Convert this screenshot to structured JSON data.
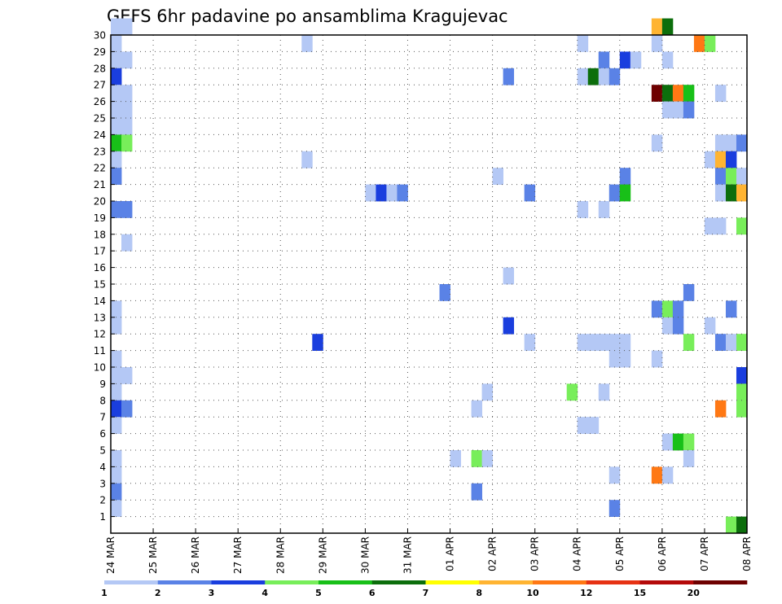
{
  "chart_data": {
    "type": "heatmap",
    "title": "GEFS 6hr padavine po ansamblima Kragujevac",
    "xlabel": "",
    "ylabel": "",
    "x_tick_labels": [
      "24 MAR",
      "25 MAR",
      "26 MAR",
      "27 MAR",
      "28 MAR",
      "29 MAR",
      "30 MAR",
      "31 MAR",
      "01 APR",
      "02 APR",
      "03 APR",
      "04 APR",
      "05 APR",
      "06 APR",
      "07 APR",
      "08 APR"
    ],
    "y_tick_labels": [
      "1",
      "2",
      "3",
      "4",
      "5",
      "6",
      "7",
      "8",
      "9",
      "10",
      "11",
      "12",
      "13",
      "14",
      "15",
      "16",
      "17",
      "18",
      "19",
      "20",
      "21",
      "22",
      "23",
      "24",
      "25",
      "26",
      "27",
      "28",
      "29",
      "30"
    ],
    "x_range_steps": [
      0,
      60
    ],
    "steps_per_day": 4,
    "y_range": [
      0,
      30
    ],
    "grid": true,
    "colorbar": {
      "labels": [
        "1",
        "2",
        "3",
        "4",
        "5",
        "6",
        "7",
        "8",
        "10",
        "12",
        "15",
        "20"
      ],
      "colors": [
        "#b4c8f5",
        "#5a82e6",
        "#1a3ede",
        "#78ee5a",
        "#18c018",
        "#0c6e0c",
        "#ffff00",
        "#ffb432",
        "#ff7814",
        "#e63214",
        "#b40a0a",
        "#6e0000"
      ]
    },
    "cells": [
      {
        "t": 0,
        "m": 30,
        "c": 1
      },
      {
        "t": 1,
        "m": 30,
        "c": 1
      },
      {
        "t": 51,
        "m": 30,
        "c": 8
      },
      {
        "t": 52,
        "m": 30,
        "c": 6
      },
      {
        "t": 0,
        "m": 29,
        "c": 1
      },
      {
        "t": 18,
        "m": 29,
        "c": 1
      },
      {
        "t": 44,
        "m": 29,
        "c": 1
      },
      {
        "t": 51,
        "m": 29,
        "c": 1
      },
      {
        "t": 55,
        "m": 29,
        "c": 9
      },
      {
        "t": 56,
        "m": 29,
        "c": 4
      },
      {
        "t": 0,
        "m": 28,
        "c": 1
      },
      {
        "t": 1,
        "m": 28,
        "c": 1
      },
      {
        "t": 46,
        "m": 28,
        "c": 2
      },
      {
        "t": 48,
        "m": 28,
        "c": 3
      },
      {
        "t": 49,
        "m": 28,
        "c": 1
      },
      {
        "t": 52,
        "m": 28,
        "c": 1
      },
      {
        "t": 0,
        "m": 27,
        "c": 3
      },
      {
        "t": 37,
        "m": 27,
        "c": 2
      },
      {
        "t": 44,
        "m": 27,
        "c": 1
      },
      {
        "t": 45,
        "m": 27,
        "c": 6
      },
      {
        "t": 46,
        "m": 27,
        "c": 1
      },
      {
        "t": 47,
        "m": 27,
        "c": 2
      },
      {
        "t": 0,
        "m": 26,
        "c": 1
      },
      {
        "t": 1,
        "m": 26,
        "c": 1
      },
      {
        "t": 51,
        "m": 26,
        "c": 12
      },
      {
        "t": 52,
        "m": 26,
        "c": 6
      },
      {
        "t": 53,
        "m": 26,
        "c": 9
      },
      {
        "t": 54,
        "m": 26,
        "c": 5
      },
      {
        "t": 57,
        "m": 26,
        "c": 1
      },
      {
        "t": 0,
        "m": 25,
        "c": 1
      },
      {
        "t": 1,
        "m": 25,
        "c": 1
      },
      {
        "t": 52,
        "m": 25,
        "c": 1
      },
      {
        "t": 53,
        "m": 25,
        "c": 1
      },
      {
        "t": 54,
        "m": 25,
        "c": 2
      },
      {
        "t": 0,
        "m": 24,
        "c": 1
      },
      {
        "t": 1,
        "m": 24,
        "c": 1
      },
      {
        "t": 0,
        "m": 23,
        "c": 5
      },
      {
        "t": 1,
        "m": 23,
        "c": 4
      },
      {
        "t": 51,
        "m": 23,
        "c": 1
      },
      {
        "t": 57,
        "m": 23,
        "c": 1
      },
      {
        "t": 58,
        "m": 23,
        "c": 1
      },
      {
        "t": 59,
        "m": 23,
        "c": 2
      },
      {
        "t": 0,
        "m": 22,
        "c": 1
      },
      {
        "t": 18,
        "m": 22,
        "c": 1
      },
      {
        "t": 56,
        "m": 22,
        "c": 1
      },
      {
        "t": 57,
        "m": 22,
        "c": 8
      },
      {
        "t": 58,
        "m": 22,
        "c": 3
      },
      {
        "t": 0,
        "m": 21,
        "c": 2
      },
      {
        "t": 36,
        "m": 21,
        "c": 1
      },
      {
        "t": 48,
        "m": 21,
        "c": 2
      },
      {
        "t": 57,
        "m": 21,
        "c": 2
      },
      {
        "t": 58,
        "m": 21,
        "c": 4
      },
      {
        "t": 59,
        "m": 21,
        "c": 1
      },
      {
        "t": 24,
        "m": 20,
        "c": 1
      },
      {
        "t": 25,
        "m": 20,
        "c": 3
      },
      {
        "t": 26,
        "m": 20,
        "c": 1
      },
      {
        "t": 27,
        "m": 20,
        "c": 2
      },
      {
        "t": 39,
        "m": 20,
        "c": 2
      },
      {
        "t": 47,
        "m": 20,
        "c": 2
      },
      {
        "t": 48,
        "m": 20,
        "c": 5
      },
      {
        "t": 57,
        "m": 20,
        "c": 1
      },
      {
        "t": 58,
        "m": 20,
        "c": 6
      },
      {
        "t": 59,
        "m": 20,
        "c": 8
      },
      {
        "t": 0,
        "m": 19,
        "c": 2
      },
      {
        "t": 1,
        "m": 19,
        "c": 2
      },
      {
        "t": 44,
        "m": 19,
        "c": 1
      },
      {
        "t": 46,
        "m": 19,
        "c": 1
      },
      {
        "t": 56,
        "m": 18,
        "c": 1
      },
      {
        "t": 57,
        "m": 18,
        "c": 1
      },
      {
        "t": 59,
        "m": 18,
        "c": 4
      },
      {
        "t": 1,
        "m": 17,
        "c": 1
      },
      {
        "t": 37,
        "m": 15,
        "c": 1
      },
      {
        "t": 31,
        "m": 14,
        "c": 2
      },
      {
        "t": 54,
        "m": 14,
        "c": 2
      },
      {
        "t": 0,
        "m": 13,
        "c": 1
      },
      {
        "t": 51,
        "m": 13,
        "c": 2
      },
      {
        "t": 52,
        "m": 13,
        "c": 4
      },
      {
        "t": 53,
        "m": 13,
        "c": 2
      },
      {
        "t": 58,
        "m": 13,
        "c": 2
      },
      {
        "t": 0,
        "m": 12,
        "c": 1
      },
      {
        "t": 37,
        "m": 12,
        "c": 3
      },
      {
        "t": 52,
        "m": 12,
        "c": 1
      },
      {
        "t": 53,
        "m": 12,
        "c": 2
      },
      {
        "t": 56,
        "m": 12,
        "c": 1
      },
      {
        "t": 19,
        "m": 11,
        "c": 3
      },
      {
        "t": 39,
        "m": 11,
        "c": 1
      },
      {
        "t": 44,
        "m": 11,
        "c": 1
      },
      {
        "t": 45,
        "m": 11,
        "c": 1
      },
      {
        "t": 46,
        "m": 11,
        "c": 1
      },
      {
        "t": 47,
        "m": 11,
        "c": 1
      },
      {
        "t": 48,
        "m": 11,
        "c": 1
      },
      {
        "t": 54,
        "m": 11,
        "c": 4
      },
      {
        "t": 57,
        "m": 11,
        "c": 2
      },
      {
        "t": 58,
        "m": 11,
        "c": 1
      },
      {
        "t": 59,
        "m": 11,
        "c": 4
      },
      {
        "t": 0,
        "m": 10,
        "c": 1
      },
      {
        "t": 47,
        "m": 10,
        "c": 1
      },
      {
        "t": 48,
        "m": 10,
        "c": 1
      },
      {
        "t": 51,
        "m": 10,
        "c": 1
      },
      {
        "t": 0,
        "m": 9,
        "c": 1
      },
      {
        "t": 1,
        "m": 9,
        "c": 1
      },
      {
        "t": 59,
        "m": 9,
        "c": 3
      },
      {
        "t": 0,
        "m": 8,
        "c": 1
      },
      {
        "t": 35,
        "m": 8,
        "c": 1
      },
      {
        "t": 43,
        "m": 8,
        "c": 4
      },
      {
        "t": 46,
        "m": 8,
        "c": 1
      },
      {
        "t": 59,
        "m": 8,
        "c": 4
      },
      {
        "t": 0,
        "m": 7,
        "c": 3
      },
      {
        "t": 1,
        "m": 7,
        "c": 2
      },
      {
        "t": 34,
        "m": 7,
        "c": 1
      },
      {
        "t": 57,
        "m": 7,
        "c": 9
      },
      {
        "t": 59,
        "m": 7,
        "c": 4
      },
      {
        "t": 0,
        "m": 6,
        "c": 1
      },
      {
        "t": 44,
        "m": 6,
        "c": 1
      },
      {
        "t": 45,
        "m": 6,
        "c": 1
      },
      {
        "t": 52,
        "m": 5,
        "c": 1
      },
      {
        "t": 53,
        "m": 5,
        "c": 5
      },
      {
        "t": 54,
        "m": 5,
        "c": 4
      },
      {
        "t": 0,
        "m": 4,
        "c": 1
      },
      {
        "t": 32,
        "m": 4,
        "c": 1
      },
      {
        "t": 34,
        "m": 4,
        "c": 4
      },
      {
        "t": 35,
        "m": 4,
        "c": 1
      },
      {
        "t": 54,
        "m": 4,
        "c": 1
      },
      {
        "t": 0,
        "m": 3,
        "c": 1
      },
      {
        "t": 47,
        "m": 3,
        "c": 1
      },
      {
        "t": 51,
        "m": 3,
        "c": 9
      },
      {
        "t": 52,
        "m": 3,
        "c": 1
      },
      {
        "t": 0,
        "m": 2,
        "c": 2
      },
      {
        "t": 34,
        "m": 2,
        "c": 2
      },
      {
        "t": 0,
        "m": 1,
        "c": 1
      },
      {
        "t": 47,
        "m": 1,
        "c": 2
      },
      {
        "t": 58,
        "m": 0,
        "c": 4
      },
      {
        "t": 59,
        "m": 0,
        "c": 6
      }
    ]
  }
}
